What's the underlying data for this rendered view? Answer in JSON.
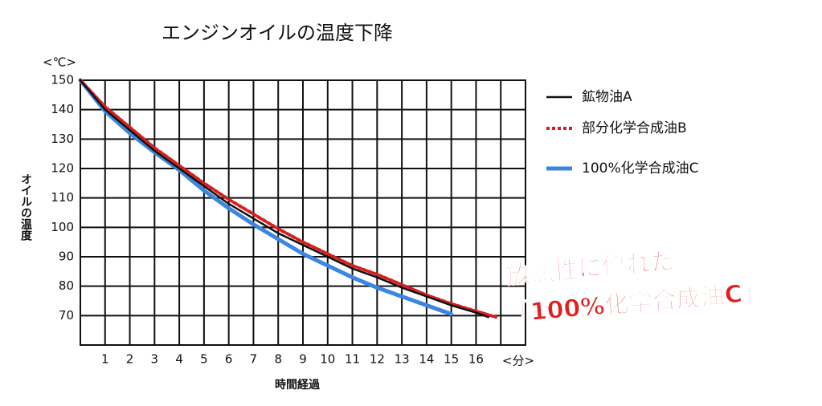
{
  "chart_data": {
    "type": "line",
    "title": "エンジンオイルの温度下降",
    "x_label": "時間経過",
    "x_unit": "<分>",
    "y_label": "オイルの温度",
    "y_unit": "<℃>",
    "xlim": [
      0,
      18
    ],
    "xticks": [
      1,
      2,
      3,
      4,
      5,
      6,
      7,
      8,
      9,
      10,
      11,
      12,
      13,
      14,
      15,
      16
    ],
    "ylim": [
      60,
      150
    ],
    "yticks": [
      70,
      80,
      90,
      100,
      110,
      120,
      130,
      140,
      150
    ],
    "grid": true,
    "series": [
      {
        "name": "鉱物油A",
        "color": "#111111",
        "style": "solid",
        "x": [
          0,
          1,
          2,
          3,
          4,
          5,
          6,
          7,
          8,
          9,
          10,
          11,
          12,
          13,
          14,
          15,
          16,
          16.5
        ],
        "values": [
          150,
          140,
          133,
          126,
          120,
          114,
          108,
          103,
          98,
          94,
          90,
          86,
          83,
          79.5,
          76.5,
          73.5,
          71,
          69.5
        ]
      },
      {
        "name": "部分化学合成油B",
        "color": "#d42020",
        "style": "dotted",
        "x": [
          0,
          1,
          2,
          3,
          4,
          5,
          6,
          7,
          8,
          9,
          10,
          11,
          12,
          13,
          14,
          15,
          16,
          16.8
        ],
        "values": [
          150,
          141,
          134,
          127,
          121,
          115,
          109.5,
          104.5,
          99.5,
          95,
          91,
          87,
          84,
          80.5,
          77,
          74,
          71.5,
          69.5
        ]
      },
      {
        "name": "100%化学合成油C",
        "color": "#3a86e0",
        "style": "thick",
        "x": [
          0,
          1,
          2,
          3,
          4,
          5,
          6,
          7,
          8,
          9,
          10,
          11,
          12,
          13,
          14,
          15
        ],
        "values": [
          150,
          139.5,
          132,
          125.5,
          119.5,
          112.5,
          106.5,
          101,
          96,
          91,
          87,
          83,
          79.5,
          76.5,
          73.5,
          70.5
        ]
      }
    ],
    "annotations": [
      "放熱性に優れた",
      "「100%化学合成油C」"
    ]
  }
}
